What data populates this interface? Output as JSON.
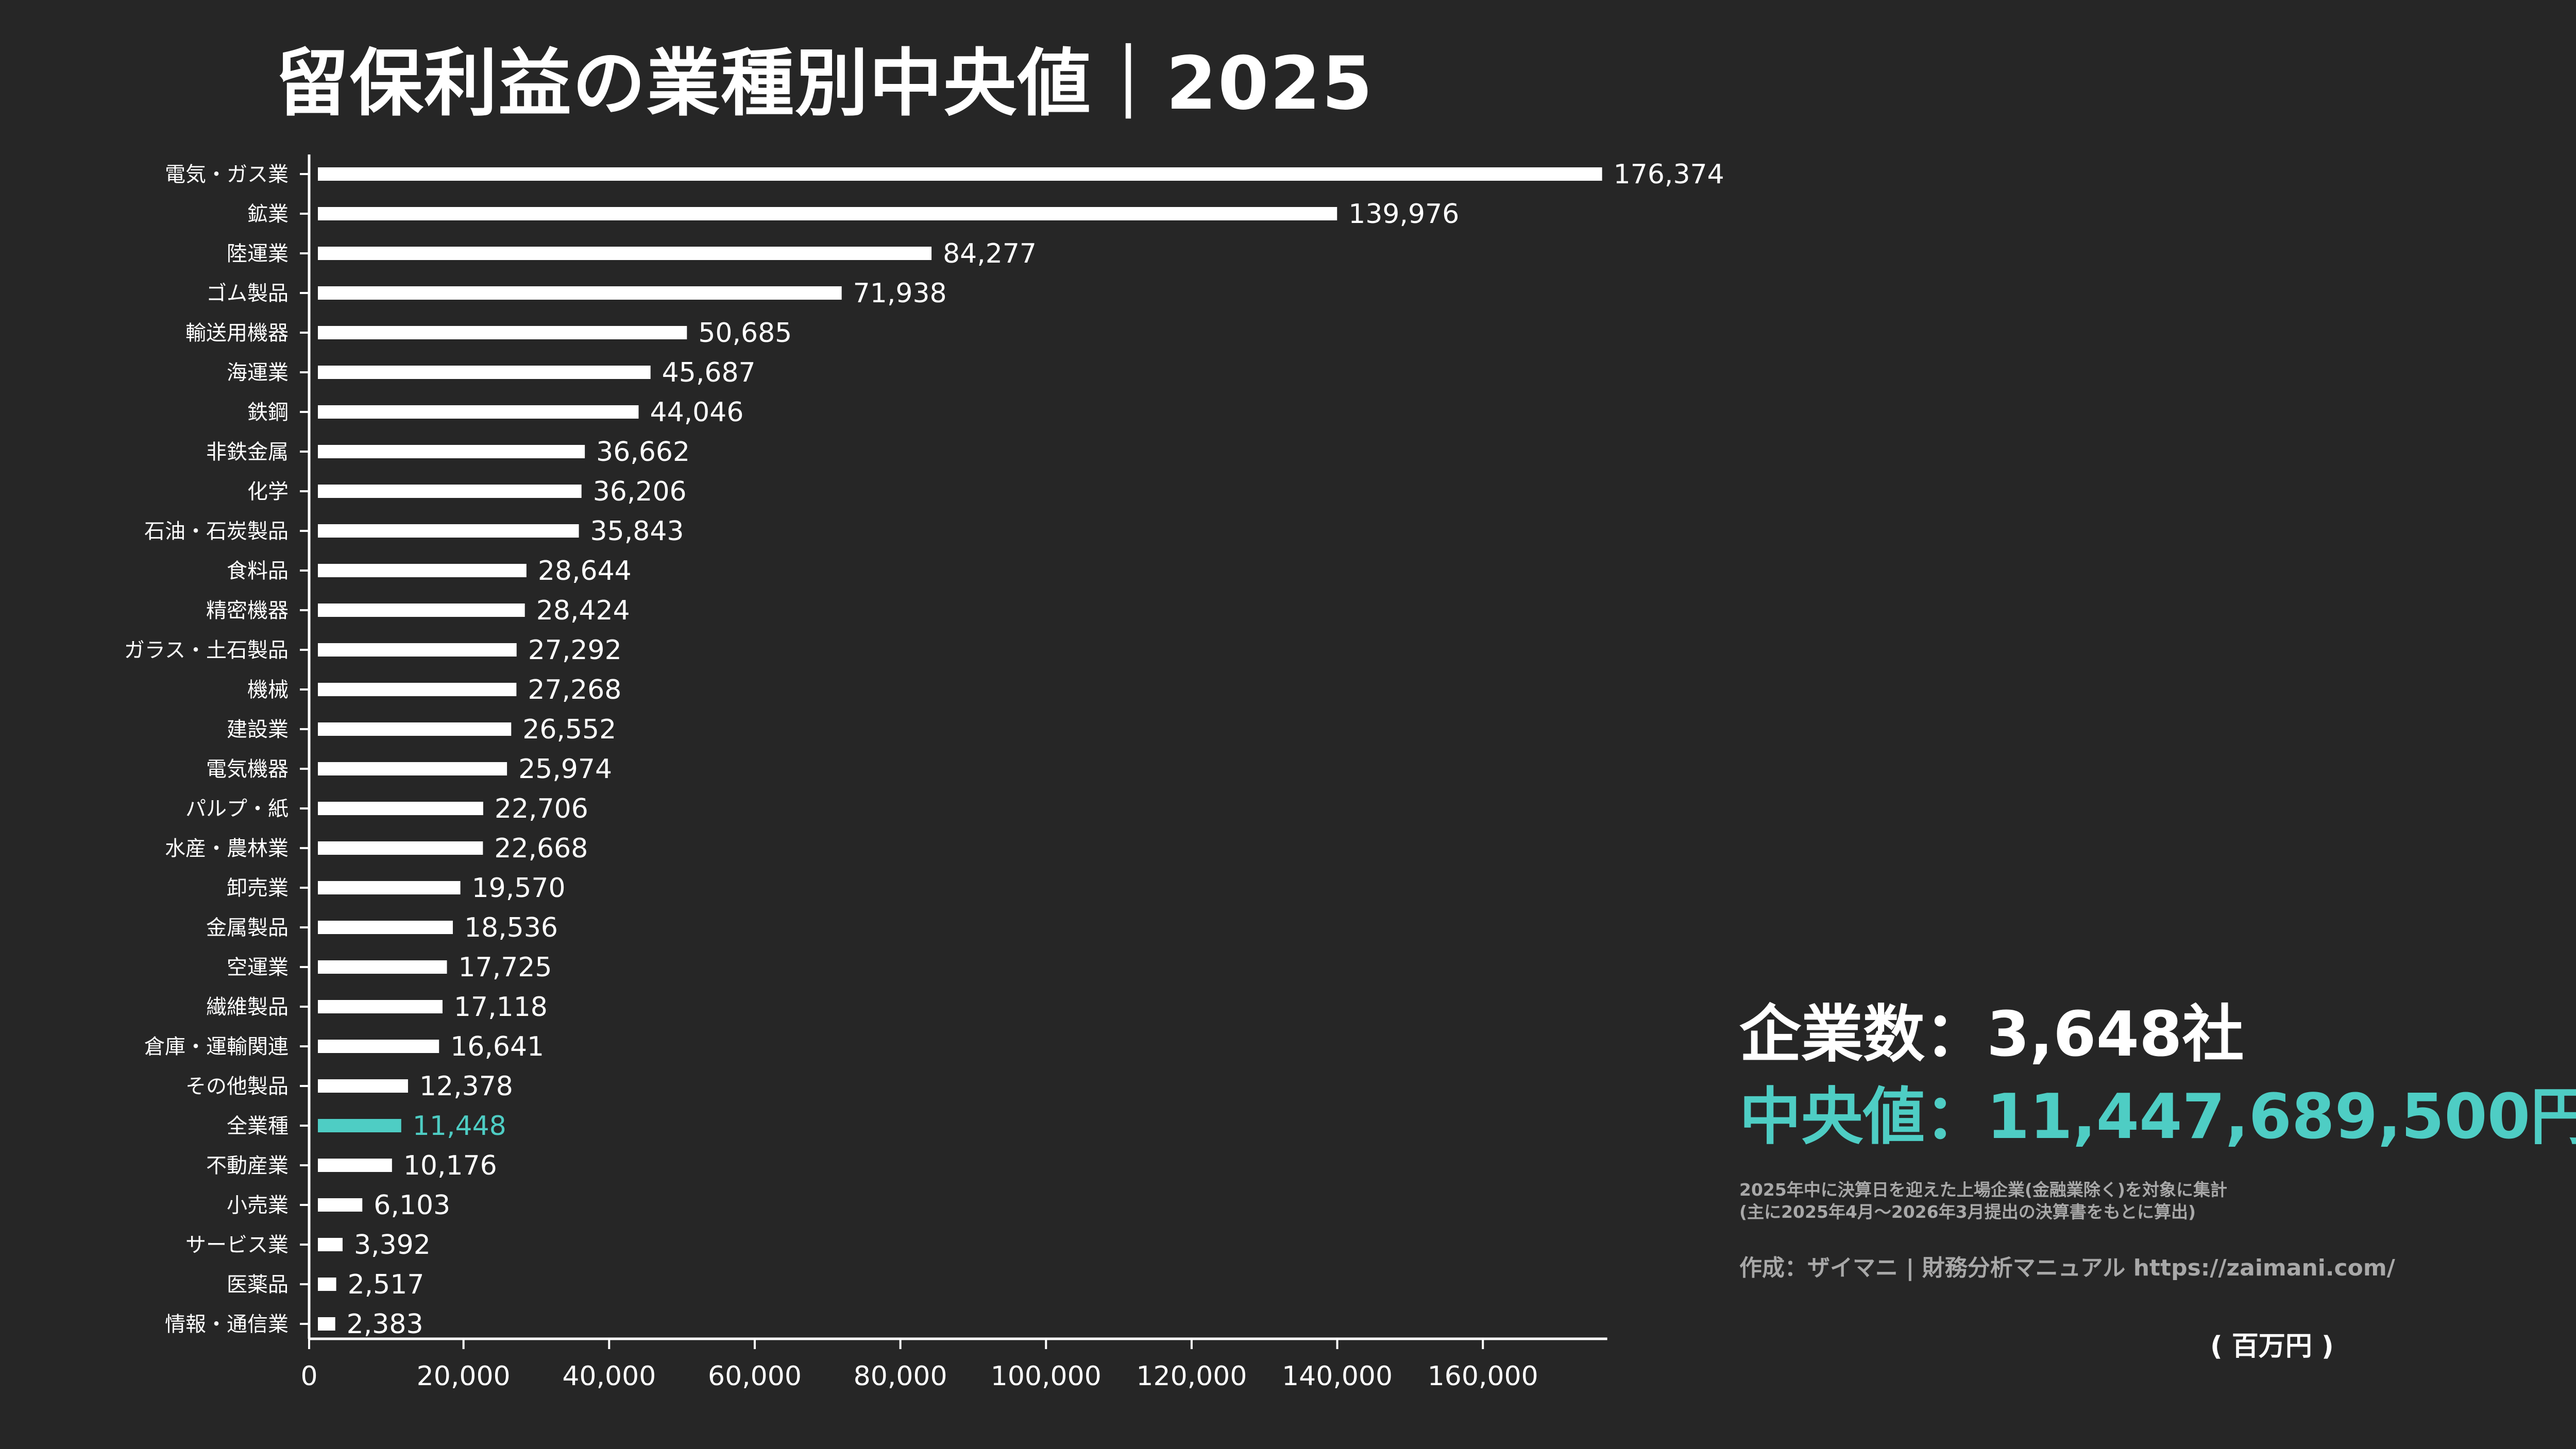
{
  "chart_data": {
    "type": "bar",
    "orientation": "horizontal",
    "title": "留保利益の業種別中央値｜2025",
    "unit": "( 百万円 )",
    "xlim": [
      0,
      176374
    ],
    "xticks": [
      "0",
      "20,000",
      "40,000",
      "60,000",
      "80,000",
      "100,000",
      "120,000",
      "140,000",
      "160,000"
    ],
    "xtick_values": [
      0,
      20000,
      40000,
      60000,
      80000,
      100000,
      120000,
      140000,
      160000
    ],
    "bar_color": "#ffffff",
    "highlight_color": "#4ecdc4",
    "highlight_category": "全業種",
    "categories": [
      "電気・ガス業",
      "鉱業",
      "陸運業",
      "ゴム製品",
      "輸送用機器",
      "海運業",
      "鉄鋼",
      "非鉄金属",
      "化学",
      "石油・石炭製品",
      "食料品",
      "精密機器",
      "ガラス・土石製品",
      "機械",
      "建設業",
      "電気機器",
      "パルプ・紙",
      "水産・農林業",
      "卸売業",
      "金属製品",
      "空運業",
      "繊維製品",
      "倉庫・運輸関連",
      "その他製品",
      "全業種",
      "不動産業",
      "小売業",
      "サービス業",
      "医薬品",
      "情報・通信業"
    ],
    "values": [
      176374,
      139976,
      84277,
      71938,
      50685,
      45687,
      44046,
      36662,
      36206,
      35843,
      28644,
      28424,
      27292,
      27268,
      26552,
      25974,
      22706,
      22668,
      19570,
      18536,
      17725,
      17118,
      16641,
      12378,
      11448,
      10176,
      6103,
      3392,
      2517,
      2383
    ],
    "value_labels": [
      "176,374",
      "139,976",
      "84,277",
      "71,938",
      "50,685",
      "45,687",
      "44,046",
      "36,662",
      "36,206",
      "35,843",
      "28,644",
      "28,424",
      "27,292",
      "27,268",
      "26,552",
      "25,974",
      "22,706",
      "22,668",
      "19,570",
      "18,536",
      "17,725",
      "17,118",
      "16,641",
      "12,378",
      "11,448",
      "10,176",
      "6,103",
      "3,392",
      "2,517",
      "2,383"
    ]
  },
  "info": {
    "company_count": "企業数：3,648社",
    "median": "中央値：11,447,689,500円",
    "note_1": "2025年中に決算日を迎えた上場企業(金融業除く)を対象に集計",
    "note_2": "(主に2025年4月～2026年3月提出の決算書をもとに算出)",
    "credit": "作成：ザイマニ | 財務分析マニュアル https://zaimani.com/"
  },
  "colors": {
    "background": "#262626",
    "text": "#ffffff",
    "accent": "#4ecdc4",
    "note_text": "#a8a8a8"
  }
}
